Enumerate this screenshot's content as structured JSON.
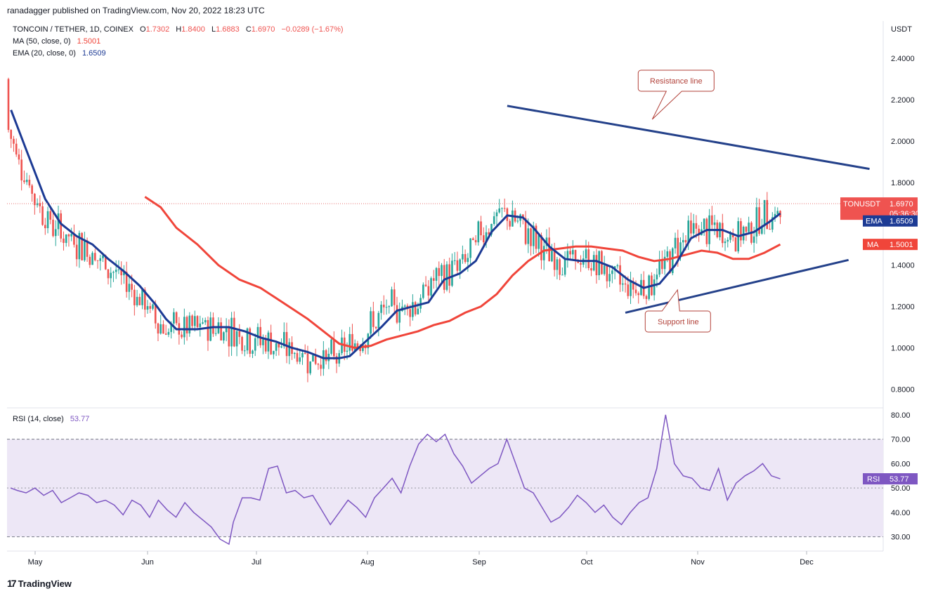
{
  "byline": "ranadagger published on TradingView.com, Nov 20, 2022 18:23 UTC",
  "branding": {
    "logo_text": "TradingView",
    "logo_icon": "tradingview-logo-icon"
  },
  "colors": {
    "up": "#26a69a",
    "down": "#ef5350",
    "ema": "#1c3a94",
    "ma": "#f0453a",
    "rsi": "#7e57c2",
    "rsi_band": "#ede7f6",
    "trend": "#24418a",
    "annot_border": "#b2423a"
  },
  "chart_data": [
    {
      "type": "candlestick",
      "title": "TONCOIN / TETHER, 1D, COINEX",
      "ohlc_label": {
        "o_label": "O",
        "open": "1.7302",
        "h_label": "H",
        "high": "1.8400",
        "l_label": "L",
        "low": "1.6883",
        "c_label": "C",
        "close": "1.6970",
        "change": "−0.0289 (−1.67%)"
      },
      "indicators": [
        {
          "label": "MA (50, close, 0)",
          "value": "1.5001",
          "color": "#f0453a"
        },
        {
          "label": "EMA (20, close, 0)",
          "value": "1.6509",
          "color": "#1c3a94"
        }
      ],
      "y_axis": {
        "label": "USDT",
        "ticks": [
          "2.4000",
          "2.2000",
          "2.0000",
          "1.8000",
          "1.6000",
          "1.4000",
          "1.2000",
          "1.0000",
          "0.8000"
        ],
        "tick_values": [
          2.4,
          2.2,
          2.0,
          1.8,
          1.6,
          1.4,
          1.2,
          1.0,
          0.8
        ],
        "range": [
          0.72,
          2.58
        ]
      },
      "x_axis": {
        "ticks": [
          "May",
          "Jun",
          "Jul",
          "Aug",
          "Sep",
          "Oct",
          "Nov",
          "Dec"
        ]
      },
      "price_labels": {
        "symbol": "TONUSDT",
        "price": "1.6970",
        "countdown": "05:36:30",
        "ema_tag": "EMA",
        "ema_value": "1.6509",
        "ma_tag": "MA",
        "ma_value": "1.5001"
      },
      "ema_series": [
        [
          1,
          2.15
        ],
        [
          7,
          1.95
        ],
        [
          14,
          1.72
        ],
        [
          20,
          1.6
        ],
        [
          26,
          1.54
        ],
        [
          32,
          1.5
        ],
        [
          38,
          1.43
        ],
        [
          44,
          1.37
        ],
        [
          50,
          1.3
        ],
        [
          56,
          1.21
        ],
        [
          60,
          1.14
        ],
        [
          64,
          1.09
        ],
        [
          72,
          1.09
        ],
        [
          78,
          1.1
        ],
        [
          84,
          1.1
        ],
        [
          90,
          1.08
        ],
        [
          96,
          1.05
        ],
        [
          102,
          1.03
        ],
        [
          108,
          1.0
        ],
        [
          114,
          0.98
        ],
        [
          120,
          0.95
        ],
        [
          126,
          0.95
        ],
        [
          130,
          0.96
        ],
        [
          136,
          1.03
        ],
        [
          142,
          1.1
        ],
        [
          148,
          1.18
        ],
        [
          154,
          1.2
        ],
        [
          160,
          1.22
        ],
        [
          166,
          1.33
        ],
        [
          172,
          1.36
        ],
        [
          178,
          1.42
        ],
        [
          184,
          1.56
        ],
        [
          190,
          1.64
        ],
        [
          196,
          1.63
        ],
        [
          200,
          1.58
        ],
        [
          206,
          1.49
        ],
        [
          212,
          1.43
        ],
        [
          218,
          1.42
        ],
        [
          224,
          1.42
        ],
        [
          230,
          1.39
        ],
        [
          236,
          1.33
        ],
        [
          242,
          1.29
        ],
        [
          248,
          1.31
        ],
        [
          254,
          1.4
        ],
        [
          260,
          1.53
        ],
        [
          266,
          1.57
        ],
        [
          272,
          1.57
        ],
        [
          278,
          1.54
        ],
        [
          284,
          1.56
        ],
        [
          290,
          1.61
        ],
        [
          294,
          1.65
        ]
      ],
      "ma_series": [
        [
          52,
          1.73
        ],
        [
          58,
          1.68
        ],
        [
          64,
          1.58
        ],
        [
          72,
          1.5
        ],
        [
          80,
          1.4
        ],
        [
          88,
          1.33
        ],
        [
          96,
          1.29
        ],
        [
          102,
          1.24
        ],
        [
          108,
          1.19
        ],
        [
          114,
          1.14
        ],
        [
          120,
          1.08
        ],
        [
          126,
          1.02
        ],
        [
          132,
          1.0
        ],
        [
          138,
          1.01
        ],
        [
          144,
          1.04
        ],
        [
          150,
          1.06
        ],
        [
          156,
          1.08
        ],
        [
          162,
          1.11
        ],
        [
          168,
          1.13
        ],
        [
          174,
          1.17
        ],
        [
          180,
          1.2
        ],
        [
          186,
          1.26
        ],
        [
          192,
          1.35
        ],
        [
          198,
          1.42
        ],
        [
          204,
          1.47
        ],
        [
          210,
          1.48
        ],
        [
          216,
          1.49
        ],
        [
          222,
          1.49
        ],
        [
          228,
          1.48
        ],
        [
          234,
          1.47
        ],
        [
          240,
          1.44
        ],
        [
          246,
          1.42
        ],
        [
          252,
          1.43
        ],
        [
          258,
          1.45
        ],
        [
          264,
          1.47
        ],
        [
          270,
          1.46
        ],
        [
          276,
          1.43
        ],
        [
          282,
          1.43
        ],
        [
          288,
          1.46
        ],
        [
          294,
          1.5
        ]
      ],
      "trendlines": [
        {
          "name": "resistance",
          "points": [
            [
              190,
              2.17
            ],
            [
              328,
              1.865
            ]
          ]
        },
        {
          "name": "support",
          "points": [
            [
              235,
              1.17
            ],
            [
              320,
              1.425
            ]
          ]
        }
      ],
      "annotations": [
        {
          "text": "Resistance line",
          "at": [
            253,
            2.0
          ]
        },
        {
          "text": "Support line",
          "at": [
            253,
            1.22
          ]
        }
      ]
    },
    {
      "type": "line",
      "title": "RSI (14, close)",
      "value": "53.77",
      "tag": "RSI",
      "y_axis": {
        "ticks": [
          "80.00",
          "70.00",
          "60.00",
          "50.00",
          "40.00",
          "30.00"
        ],
        "tick_values": [
          80,
          70,
          60,
          50,
          40,
          30
        ],
        "range": [
          25,
          82
        ]
      },
      "band": [
        30,
        70
      ],
      "series": [
        [
          1,
          50
        ],
        [
          4,
          49
        ],
        [
          8,
          48
        ],
        [
          12,
          50
        ],
        [
          16,
          47
        ],
        [
          20,
          49
        ],
        [
          24,
          44
        ],
        [
          28,
          46
        ],
        [
          32,
          48
        ],
        [
          36,
          47
        ],
        [
          40,
          44
        ],
        [
          44,
          45
        ],
        [
          48,
          43
        ],
        [
          52,
          39
        ],
        [
          56,
          45
        ],
        [
          60,
          43
        ],
        [
          64,
          38
        ],
        [
          68,
          45
        ],
        [
          72,
          41
        ],
        [
          76,
          38
        ],
        [
          80,
          44
        ],
        [
          84,
          40
        ],
        [
          88,
          37
        ],
        [
          92,
          34
        ],
        [
          96,
          29
        ],
        [
          100,
          27
        ],
        [
          102,
          36
        ],
        [
          106,
          46
        ],
        [
          110,
          46
        ],
        [
          114,
          45
        ],
        [
          118,
          58
        ],
        [
          122,
          59
        ],
        [
          126,
          48
        ],
        [
          130,
          49
        ],
        [
          134,
          46
        ],
        [
          138,
          47
        ],
        [
          142,
          41
        ],
        [
          146,
          35
        ],
        [
          150,
          40
        ],
        [
          154,
          45
        ],
        [
          158,
          42
        ],
        [
          162,
          38
        ],
        [
          166,
          46
        ],
        [
          170,
          50
        ],
        [
          174,
          54
        ],
        [
          178,
          48
        ],
        [
          182,
          59
        ],
        [
          186,
          68
        ],
        [
          190,
          72
        ],
        [
          194,
          69
        ],
        [
          198,
          72
        ],
        [
          202,
          64
        ],
        [
          206,
          59
        ],
        [
          210,
          52
        ],
        [
          214,
          55
        ],
        [
          218,
          58
        ],
        [
          222,
          60
        ],
        [
          226,
          70
        ],
        [
          230,
          60
        ],
        [
          234,
          50
        ],
        [
          238,
          48
        ],
        [
          242,
          42
        ],
        [
          246,
          36
        ],
        [
          250,
          38
        ],
        [
          254,
          42
        ],
        [
          258,
          47
        ],
        [
          262,
          44
        ],
        [
          266,
          40
        ],
        [
          270,
          43
        ],
        [
          274,
          38
        ],
        [
          278,
          35
        ],
        [
          282,
          40
        ],
        [
          286,
          44
        ],
        [
          290,
          46
        ],
        [
          294,
          58
        ],
        [
          298,
          80
        ],
        [
          302,
          60
        ],
        [
          306,
          55
        ],
        [
          310,
          54
        ],
        [
          314,
          50
        ],
        [
          318,
          49
        ],
        [
          322,
          58
        ],
        [
          326,
          45
        ],
        [
          330,
          52
        ],
        [
          334,
          55
        ],
        [
          338,
          57
        ],
        [
          342,
          60
        ],
        [
          346,
          55
        ],
        [
          350,
          53.77
        ]
      ]
    }
  ]
}
